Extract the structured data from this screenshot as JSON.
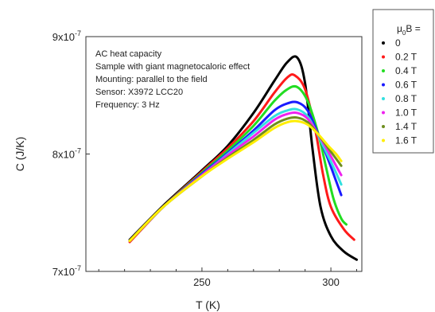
{
  "chart_data": {
    "type": "line",
    "title": "",
    "xlabel": "T (K)",
    "ylabel": "C (J/K)",
    "xlim": [
      205,
      312
    ],
    "ylim": [
      7e-07,
      9e-07
    ],
    "x_ticks": [
      250,
      300
    ],
    "y_ticks": [
      {
        "value": 7e-07,
        "mantissa": "7x10",
        "exponent": "-7"
      },
      {
        "value": 8e-07,
        "mantissa": "8x10",
        "exponent": "-7"
      },
      {
        "value": 9e-07,
        "mantissa": "9x10",
        "exponent": "-7"
      }
    ],
    "annotation_lines": [
      "AC heat capacity",
      "Sample with giant magnetocaloric effect",
      "Mounting: parallel to the field",
      "Sensor: X3972 LCC20",
      "Frequency: 3 Hz"
    ],
    "legend": {
      "title_base": "μ",
      "title_sub": "0",
      "title_rest": "B =",
      "placement": "top-right outside"
    },
    "series": [
      {
        "name": "0",
        "color": "#000000",
        "x": [
          222,
          235,
          250,
          260,
          270,
          278,
          283,
          287,
          290,
          293,
          296,
          300,
          305,
          310
        ],
        "values": [
          7.27e-07,
          7.56e-07,
          7.86e-07,
          8.07e-07,
          8.35e-07,
          8.62e-07,
          8.78e-07,
          8.82e-07,
          8.6e-07,
          8.02e-07,
          7.55e-07,
          7.3e-07,
          7.17e-07,
          7.1e-07
        ]
      },
      {
        "name": "0.2 T",
        "color": "#ff1a1a",
        "x": [
          222,
          235,
          250,
          260,
          270,
          278,
          283,
          286,
          290,
          294,
          297,
          300,
          305,
          309
        ],
        "values": [
          7.25e-07,
          7.55e-07,
          7.85e-07,
          8.05e-07,
          8.28e-07,
          8.52e-07,
          8.65e-07,
          8.67e-07,
          8.55e-07,
          8.2e-07,
          7.82e-07,
          7.55e-07,
          7.36e-07,
          7.27e-07
        ]
      },
      {
        "name": "0.4 T",
        "color": "#22dd22",
        "x": [
          222,
          235,
          250,
          260,
          270,
          278,
          283,
          287,
          291,
          295,
          298,
          301,
          304,
          306
        ],
        "values": [
          7.26e-07,
          7.55e-07,
          7.84e-07,
          8.03e-07,
          8.24e-07,
          8.45e-07,
          8.55e-07,
          8.57e-07,
          8.45e-07,
          8.18e-07,
          7.9e-07,
          7.62e-07,
          7.45e-07,
          7.4e-07
        ]
      },
      {
        "name": "0.6 T",
        "color": "#1a1aff",
        "x": [
          222,
          235,
          250,
          260,
          270,
          278,
          283,
          287,
          291,
          295,
          299,
          302,
          304
        ],
        "values": [
          7.26e-07,
          7.55e-07,
          7.83e-07,
          8.01e-07,
          8.2e-07,
          8.37e-07,
          8.43e-07,
          8.44e-07,
          8.37e-07,
          8.17e-07,
          7.95e-07,
          7.77e-07,
          7.65e-07
        ]
      },
      {
        "name": "0.8 T",
        "color": "#33e0e0",
        "x": [
          222,
          235,
          250,
          260,
          270,
          278,
          283,
          287,
          291,
          295,
          299,
          302,
          304
        ],
        "values": [
          7.26e-07,
          7.55e-07,
          7.82e-07,
          8e-07,
          8.18e-07,
          8.32e-07,
          8.37e-07,
          8.38e-07,
          8.32e-07,
          8.16e-07,
          7.98e-07,
          7.84e-07,
          7.74e-07
        ]
      },
      {
        "name": "1.0 T",
        "color": "#ee22ee",
        "x": [
          222,
          235,
          250,
          260,
          270,
          278,
          283,
          287,
          291,
          295,
          299,
          302,
          304
        ],
        "values": [
          7.26e-07,
          7.55e-07,
          7.82e-07,
          7.99e-07,
          8.15e-07,
          8.29e-07,
          8.34e-07,
          8.35e-07,
          8.3e-07,
          8.17e-07,
          8.02e-07,
          7.9e-07,
          7.82e-07
        ]
      },
      {
        "name": "1.4 T",
        "color": "#6e8e1e",
        "x": [
          222,
          235,
          250,
          260,
          270,
          278,
          283,
          287,
          291,
          295,
          299,
          302,
          304
        ],
        "values": [
          7.26e-07,
          7.55e-07,
          7.81e-07,
          7.97e-07,
          8.12e-07,
          8.25e-07,
          8.3e-07,
          8.31e-07,
          8.27e-07,
          8.17e-07,
          8.05e-07,
          7.96e-07,
          7.9e-07
        ]
      },
      {
        "name": "1.6 T",
        "color": "#ffee00",
        "x": [
          222,
          235,
          250,
          260,
          270,
          278,
          283,
          287,
          291,
          295,
          299,
          302,
          304
        ],
        "values": [
          7.26e-07,
          7.55e-07,
          7.81e-07,
          7.96e-07,
          8.1e-07,
          8.22e-07,
          8.27e-07,
          8.28e-07,
          8.25e-07,
          8.17e-07,
          8.07e-07,
          8e-07,
          7.94e-07
        ]
      }
    ]
  }
}
